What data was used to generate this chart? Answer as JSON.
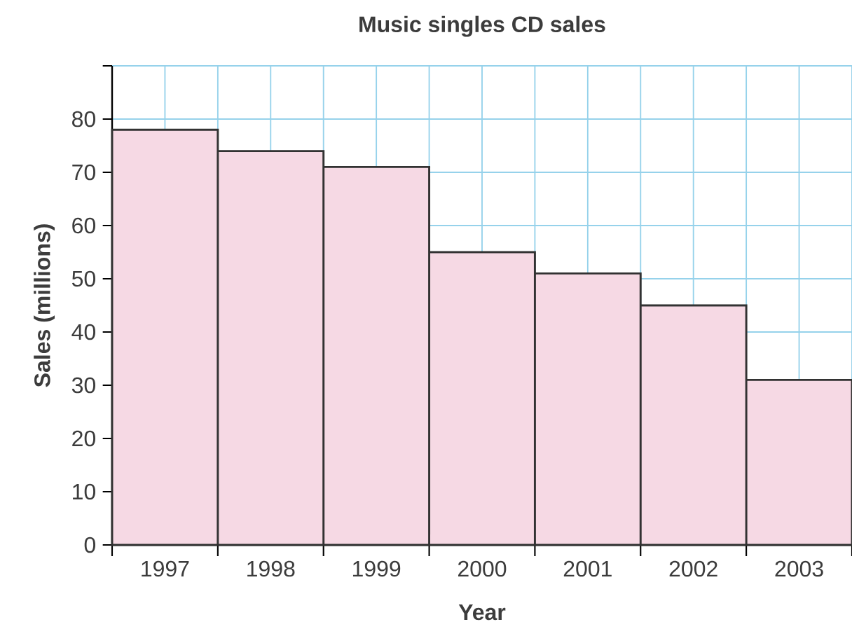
{
  "chart_data": {
    "type": "bar",
    "title": "Music singles CD sales",
    "xlabel": "Year",
    "ylabel": "Sales (millions)",
    "categories": [
      "1997",
      "1998",
      "1999",
      "2000",
      "2001",
      "2002",
      "2003"
    ],
    "values": [
      78,
      74,
      71,
      55,
      51,
      45,
      31
    ],
    "color": "#f6d9e4",
    "ylim": [
      0,
      90
    ],
    "yticks": [
      0,
      10,
      20,
      30,
      40,
      50,
      60,
      70,
      80,
      {
        "value": 90,
        "label": null
      }
    ],
    "grid": true
  }
}
